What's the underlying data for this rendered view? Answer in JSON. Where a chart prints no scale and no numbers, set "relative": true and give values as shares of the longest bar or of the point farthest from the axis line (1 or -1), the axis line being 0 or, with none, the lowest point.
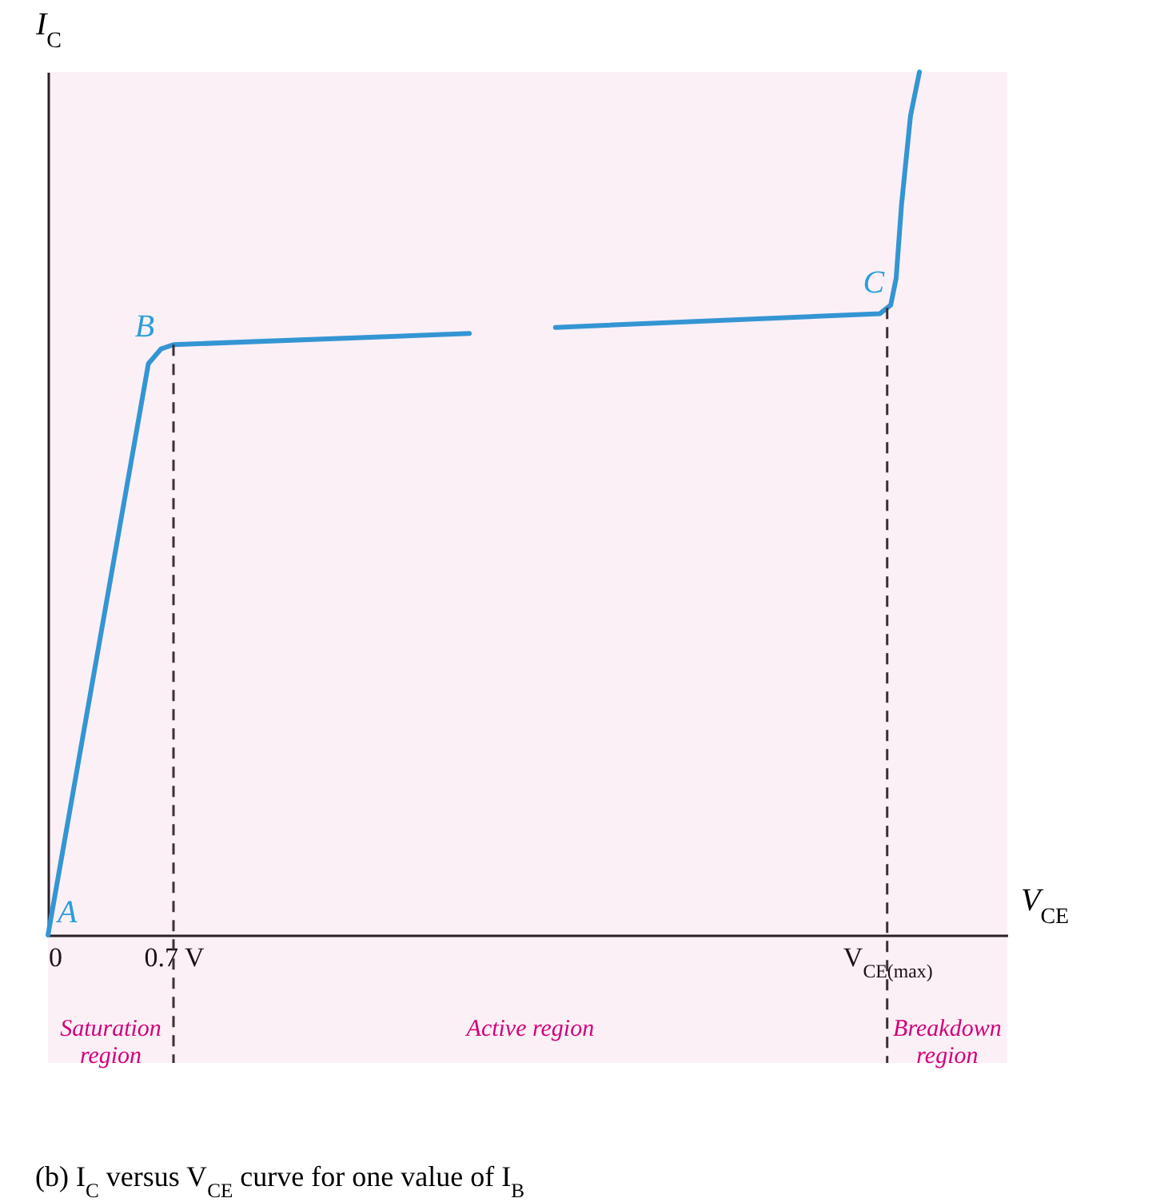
{
  "chart_data": {
    "type": "line",
    "relative": true,
    "title": "(b) I$_{C}$ versus V$_{CE}$ curve for one value of I$_{B}$",
    "xlabel": "V$_{CE}$",
    "ylabel": "I$_{C}$",
    "xlim": [
      0,
      5.35
    ],
    "xticks": [
      0,
      {
        "value": 0.7,
        "label": "0.7 V"
      },
      {
        "value": 4.68,
        "label": "V$_{CE(max)}$"
      }
    ],
    "series": [
      {
        "color": "#2b9fd9",
        "x": [
          0,
          0.56,
          0.63,
          0.7,
          2.35,
          2.59,
          2.83,
          4.64,
          4.7,
          4.73,
          4.76,
          4.81,
          4.86
        ],
        "values": [
          0,
          0.662,
          0.679,
          0.684,
          0.697,
          null,
          0.704,
          0.72,
          0.73,
          0.761,
          0.846,
          0.949,
          1
        ]
      }
    ],
    "ref_lines": [
      {
        "axis": "x",
        "value": 0.7,
        "color": "#333333",
        "line_style": "dashed"
      },
      {
        "axis": "x",
        "value": 4.68,
        "color": "#333333",
        "line_style": "dashed"
      }
    ],
    "bands": [
      {
        "axis": "x",
        "from": 0,
        "to": 0.7,
        "label": "Saturation\nregion",
        "color": "#d1007a"
      },
      {
        "axis": "x",
        "from": 0.7,
        "to": 4.68,
        "label": "Active region",
        "color": "#d1007a"
      },
      {
        "axis": "x",
        "from": 4.68,
        "to": 5.35,
        "label": "Breakdown\nregion",
        "color": "#d1007a"
      }
    ],
    "annotations": [
      {
        "text": "A",
        "x": 0,
        "y": 0
      },
      {
        "text": "B",
        "x": 0.63,
        "y": 0.679
      },
      {
        "text": "C",
        "x": 4.7,
        "y": 0.73
      }
    ]
  }
}
